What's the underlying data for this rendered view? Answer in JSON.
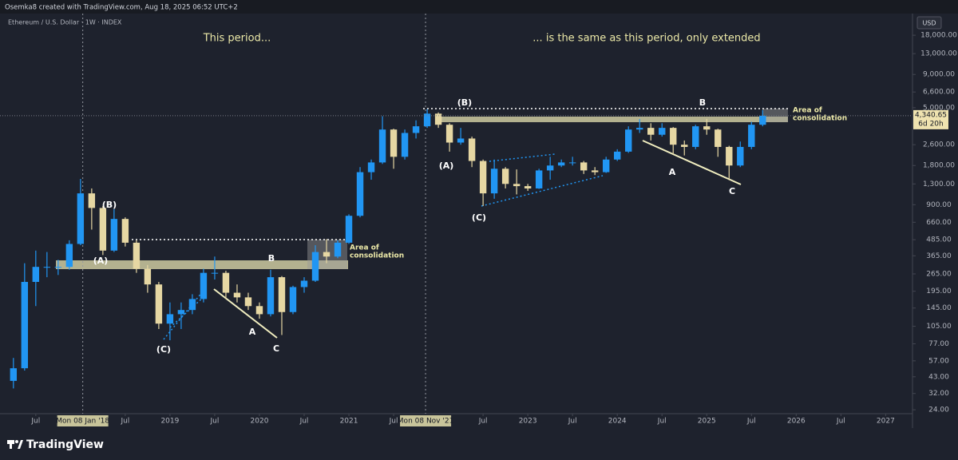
{
  "chart_data": {
    "type": "candlestick",
    "title": "Ethereum / U.S. Dollar · 1W · INDEX",
    "attribution": "Osemka8 created with TradingView.com, Aug 18, 2025 06:52 UTC+2",
    "currency": "USD",
    "countdown": "6d 20h",
    "log_scale": true,
    "grid": false,
    "up_color": "#2196f3",
    "down_color": "#e6d7a3",
    "annotations": [
      "This period...",
      "... is the same as this period, only extended",
      "(B)",
      "(A)",
      "(C)",
      "B",
      "A",
      "C",
      "(B)",
      "(A)",
      "(C)",
      "B",
      "A",
      "C",
      "Area of",
      "consolidation",
      "Area of",
      "consolidation"
    ],
    "x": [
      2017.25,
      2017.375,
      2017.5,
      2017.625,
      2017.75,
      2017.875,
      2018.0,
      2018.125,
      2018.25,
      2018.375,
      2018.5,
      2018.625,
      2018.75,
      2018.875,
      2019.0,
      2019.125,
      2019.25,
      2019.375,
      2019.5,
      2019.625,
      2019.75,
      2019.875,
      2020.0,
      2020.125,
      2020.25,
      2020.375,
      2020.5,
      2020.625,
      2020.75,
      2020.875,
      2021.0,
      2021.125,
      2021.25,
      2021.375,
      2021.5,
      2021.625,
      2021.75,
      2021.875,
      2022.0,
      2022.125,
      2022.25,
      2022.375,
      2022.5,
      2022.625,
      2022.75,
      2022.875,
      2023.0,
      2023.125,
      2023.25,
      2023.375,
      2023.5,
      2023.625,
      2023.75,
      2023.875,
      2024.0,
      2024.125,
      2024.25,
      2024.375,
      2024.5,
      2024.625,
      2024.75,
      2024.875,
      2025.0,
      2025.125,
      2025.25,
      2025.375,
      2025.5,
      2025.625
    ],
    "open": [
      40,
      50,
      230,
      300,
      300,
      300,
      450,
      1100,
      850,
      400,
      700,
      460,
      290,
      220,
      110,
      130,
      140,
      170,
      270,
      270,
      190,
      175,
      150,
      130,
      250,
      135,
      210,
      235,
      390,
      360,
      460,
      740,
      1600,
      1900,
      3400,
      2100,
      3200,
      3600,
      4500,
      3700,
      2700,
      2900,
      1950,
      1100,
      1700,
      1300,
      1250,
      1200,
      1650,
      1800,
      1900,
      1900,
      1650,
      1600,
      2000,
      2300,
      3400,
      3500,
      3100,
      3500,
      2600,
      2500,
      3600,
      3400,
      2500,
      1800,
      2500,
      3700
    ],
    "high": [
      60,
      320,
      400,
      390,
      340,
      480,
      1420,
      1200,
      880,
      830,
      720,
      480,
      310,
      230,
      160,
      160,
      185,
      290,
      360,
      280,
      220,
      190,
      160,
      285,
      255,
      215,
      250,
      440,
      490,
      480,
      760,
      1750,
      2000,
      4300,
      3450,
      3400,
      4000,
      4870,
      4600,
      3800,
      3500,
      3000,
      2000,
      2000,
      1750,
      1680,
      1300,
      1700,
      2100,
      2000,
      2100,
      1950,
      1750,
      2100,
      2400,
      3600,
      4090,
      3800,
      3800,
      3550,
      2800,
      3700,
      4100,
      3450,
      2550,
      2750,
      3900,
      4790
    ],
    "low": [
      35,
      48,
      150,
      250,
      260,
      285,
      440,
      580,
      370,
      390,
      430,
      270,
      190,
      100,
      82,
      100,
      130,
      160,
      240,
      170,
      160,
      140,
      120,
      125,
      90,
      130,
      190,
      230,
      320,
      350,
      450,
      720,
      1400,
      1850,
      1700,
      2000,
      2900,
      3500,
      3500,
      2300,
      2600,
      1750,
      880,
      1000,
      1200,
      1080,
      1150,
      1190,
      1400,
      1750,
      1800,
      1550,
      1520,
      1580,
      1950,
      2250,
      3200,
      2800,
      3000,
      2200,
      2150,
      2400,
      3100,
      2100,
      1390,
      1750,
      2400,
      3600
    ],
    "close": [
      50,
      230,
      300,
      300,
      300,
      450,
      1100,
      850,
      400,
      700,
      460,
      290,
      220,
      110,
      130,
      140,
      170,
      270,
      270,
      190,
      175,
      150,
      130,
      250,
      135,
      210,
      235,
      390,
      360,
      460,
      740,
      1600,
      1900,
      3400,
      2100,
      3200,
      3600,
      4500,
      3700,
      2700,
      2900,
      1950,
      1100,
      1700,
      1300,
      1250,
      1200,
      1650,
      1800,
      1900,
      1900,
      1650,
      1600,
      2000,
      2300,
      3400,
      3500,
      3100,
      3500,
      2600,
      2500,
      3600,
      3400,
      2500,
      1800,
      2500,
      3700,
      4340.65
    ],
    "last_price": {
      "value": 4340.65,
      "label": "4,340.65"
    },
    "xlim": [
      2017.1,
      2027.3
    ],
    "xticks": [
      {
        "value": 2017.5,
        "label": "Jul"
      },
      {
        "value": 2018.5,
        "label": "Jul"
      },
      2019,
      {
        "value": 2019.5,
        "label": "Jul"
      },
      2020,
      {
        "value": 2020.5,
        "label": "Jul"
      },
      2021,
      {
        "value": 2021.5,
        "label": "Jul"
      },
      {
        "value": 2022.5,
        "label": "Jul"
      },
      2023,
      {
        "value": 2023.5,
        "label": "Jul"
      },
      2024,
      {
        "value": 2024.5,
        "label": "Jul"
      },
      2025,
      {
        "value": 2025.5,
        "label": "Jul"
      },
      2026,
      {
        "value": 2026.5,
        "label": "Jul"
      },
      2027
    ],
    "crosshairs": [
      {
        "value": 2018.025,
        "label": "Mon 08 Jan '18"
      },
      {
        "value": 2021.857,
        "label": "Mon 08 Nov '21"
      }
    ],
    "ylim": [
      22.4,
      25300
    ],
    "yticks": [
      {
        "value": 18000,
        "label": "18,000.00"
      },
      {
        "value": 13000,
        "label": "13,000.00"
      },
      {
        "value": 9000,
        "label": "9,000.00"
      },
      {
        "value": 6600,
        "label": "6,600.00"
      },
      {
        "value": 5000,
        "label": "5,000.00"
      },
      {
        "value": 2600,
        "label": "2,600.00"
      },
      {
        "value": 1800,
        "label": "1,800.00"
      },
      {
        "value": 1300,
        "label": "1,300.00"
      },
      {
        "value": 900,
        "label": "900.00"
      },
      {
        "value": 660,
        "label": "660.00"
      },
      {
        "value": 485,
        "label": "485.00"
      },
      {
        "value": 365,
        "label": "365.00"
      },
      {
        "value": 265,
        "label": "265.00"
      },
      {
        "value": 195,
        "label": "195.00"
      },
      {
        "value": 145,
        "label": "145.00"
      },
      {
        "value": 105,
        "label": "105.00"
      },
      {
        "value": 77,
        "label": "77.00"
      },
      {
        "value": 57,
        "label": "57.00"
      },
      {
        "value": 43,
        "label": "43.00"
      },
      {
        "value": 32,
        "label": "32.00"
      },
      {
        "value": 24,
        "label": "24.00"
      }
    ]
  },
  "footer": {
    "brand": "TradingView"
  }
}
